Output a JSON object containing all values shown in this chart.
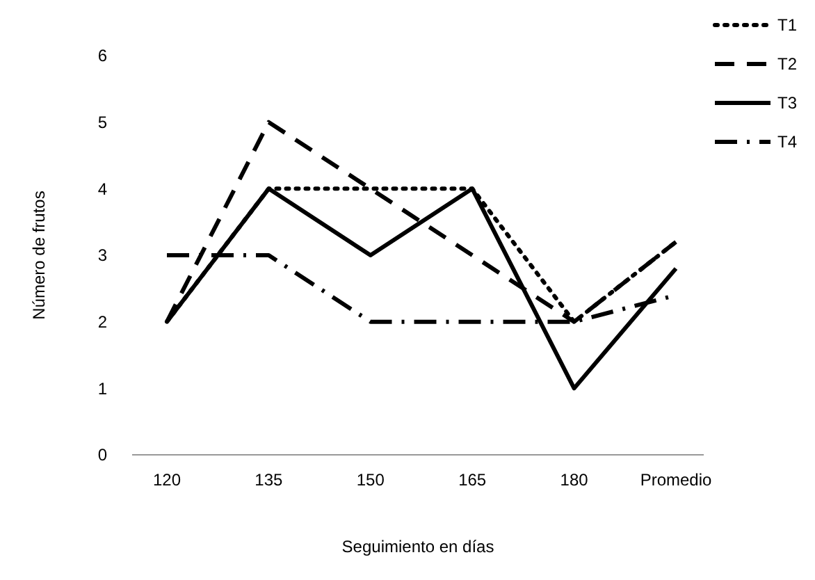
{
  "chart_data": {
    "type": "line",
    "xlabel": "Seguimiento  en días",
    "ylabel": "Número de frutos",
    "categories": [
      "120",
      "135",
      "150",
      "165",
      "180",
      "Promedio"
    ],
    "series": [
      {
        "name": "T1",
        "color": "#000000",
        "line_style": "dotted",
        "values": [
          2,
          4,
          4,
          4,
          2,
          3.2
        ]
      },
      {
        "name": "T2",
        "color": "#000000",
        "line_style": "dashed",
        "values": [
          2,
          5,
          4,
          3,
          2,
          3.2
        ]
      },
      {
        "name": "T3",
        "color": "#000000",
        "line_style": "solid",
        "values": [
          2,
          4,
          3,
          4,
          1,
          2.8
        ]
      },
      {
        "name": "T4",
        "color": "#000000",
        "line_style": "dashdot",
        "values": [
          3,
          3,
          2,
          2,
          2,
          2.4
        ]
      }
    ],
    "ylim": [
      0,
      6
    ],
    "yticks": [
      0,
      1,
      2,
      3,
      4,
      5,
      6
    ],
    "grid": false,
    "legend": "top right",
    "marker": "none"
  }
}
